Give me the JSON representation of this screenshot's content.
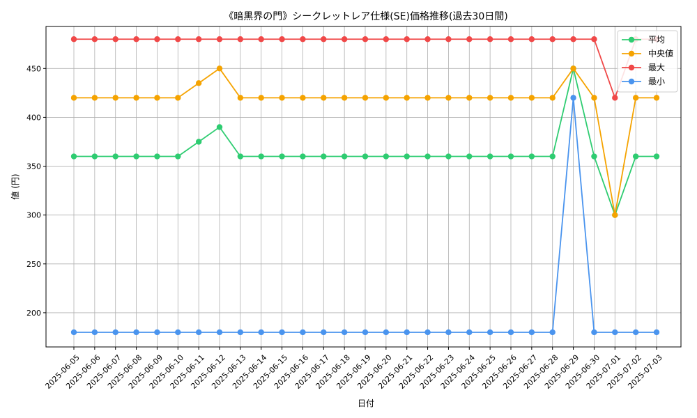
{
  "chart_data": {
    "type": "line",
    "title": "《暗黒界の門》シークレットレア仕様(SE)価格推移(過去30日間)",
    "xlabel": "日付",
    "ylabel": "値 (円)",
    "ylim": [
      165,
      493
    ],
    "yticks": [
      200,
      250,
      300,
      350,
      400,
      450
    ],
    "grid": true,
    "legend_position": "top-right",
    "x": [
      "2025-06-05",
      "2025-06-06",
      "2025-06-07",
      "2025-06-08",
      "2025-06-09",
      "2025-06-10",
      "2025-06-11",
      "2025-06-12",
      "2025-06-13",
      "2025-06-14",
      "2025-06-15",
      "2025-06-16",
      "2025-06-17",
      "2025-06-18",
      "2025-06-19",
      "2025-06-20",
      "2025-06-21",
      "2025-06-22",
      "2025-06-23",
      "2025-06-24",
      "2025-06-25",
      "2025-06-26",
      "2025-06-27",
      "2025-06-28",
      "2025-06-29",
      "2025-06-30",
      "2025-07-01",
      "2025-07-02",
      "2025-07-03"
    ],
    "series": [
      {
        "name": "平均",
        "color": "#2ecc71",
        "values": [
          360,
          360,
          360,
          360,
          360,
          360,
          375,
          390,
          360,
          360,
          360,
          360,
          360,
          360,
          360,
          360,
          360,
          360,
          360,
          360,
          360,
          360,
          360,
          360,
          450,
          360,
          300,
          360,
          360
        ]
      },
      {
        "name": "中央値",
        "color": "#f5a300",
        "values": [
          420,
          420,
          420,
          420,
          420,
          420,
          435,
          450,
          420,
          420,
          420,
          420,
          420,
          420,
          420,
          420,
          420,
          420,
          420,
          420,
          420,
          420,
          420,
          420,
          450,
          420,
          300,
          420,
          420
        ]
      },
      {
        "name": "最大",
        "color": "#f04848",
        "values": [
          480,
          480,
          480,
          480,
          480,
          480,
          480,
          480,
          480,
          480,
          480,
          480,
          480,
          480,
          480,
          480,
          480,
          480,
          480,
          480,
          480,
          480,
          480,
          480,
          480,
          480,
          420,
          480,
          480
        ]
      },
      {
        "name": "最小",
        "color": "#4a94ee",
        "values": [
          180,
          180,
          180,
          180,
          180,
          180,
          180,
          180,
          180,
          180,
          180,
          180,
          180,
          180,
          180,
          180,
          180,
          180,
          180,
          180,
          180,
          180,
          180,
          180,
          420,
          180,
          180,
          180,
          180
        ]
      }
    ]
  }
}
